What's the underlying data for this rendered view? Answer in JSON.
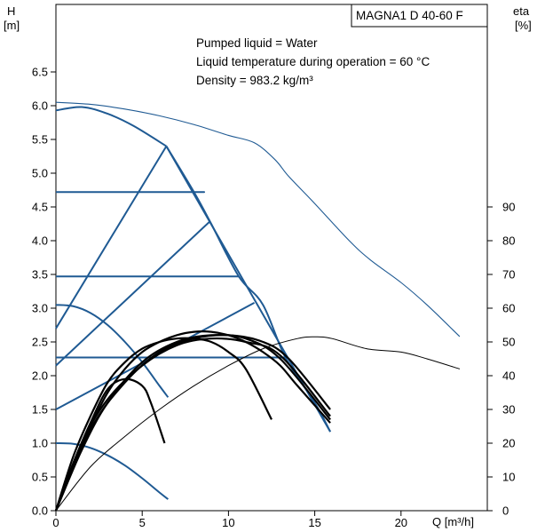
{
  "chart_data": {
    "type": "line",
    "title": "MAGNA1 D 40-60 F",
    "annotations": [
      "Pumped liquid = Water",
      "Liquid temperature during operation = 60 °C",
      "Density = 983.2 kg/m³"
    ],
    "x_axis": {
      "label": "Q [m³/h]",
      "range": [
        0,
        25
      ],
      "ticks": [
        0,
        5,
        10,
        15,
        20
      ],
      "tick_labels": [
        "0",
        "5",
        "10",
        "15",
        "20"
      ]
    },
    "y_axis_left": {
      "label_line1": "H",
      "label_line2": "[m]",
      "range": [
        0,
        7.5
      ],
      "ticks": [
        0,
        0.5,
        1,
        1.5,
        2,
        2.5,
        3,
        3.5,
        4,
        4.5,
        5,
        5.5,
        6,
        6.5
      ],
      "tick_labels": [
        "0.0",
        "0.5",
        "1.0",
        "1.5",
        "2.0",
        "2.5",
        "3.0",
        "3.5",
        "4.0",
        "4.5",
        "5.0",
        "5.5",
        "6.0",
        "6.5"
      ]
    },
    "y_axis_right": {
      "label_line1": "eta",
      "label_line2": "[%]",
      "range": [
        0,
        150
      ],
      "ticks": [
        0,
        10,
        20,
        30,
        40,
        50,
        60,
        70,
        80,
        90
      ],
      "tick_labels": [
        "0",
        "10",
        "20",
        "30",
        "40",
        "50",
        "60",
        "70",
        "80",
        "90"
      ]
    },
    "grid": false,
    "head_curves": [
      {
        "x": [
          0,
          1.5,
          3,
          4.5,
          6.4
        ],
        "y": [
          5.93,
          5.98,
          5.88,
          5.7,
          5.4
        ]
      },
      {
        "x": [
          0,
          1,
          2,
          3,
          4,
          5,
          6,
          6.5
        ],
        "y": [
          3.05,
          3.03,
          2.93,
          2.75,
          2.5,
          2.2,
          1.85,
          1.68
        ]
      },
      {
        "x": [
          0,
          1,
          2,
          3,
          4,
          5,
          6,
          6.5
        ],
        "y": [
          1.0,
          0.99,
          0.93,
          0.82,
          0.67,
          0.48,
          0.27,
          0.17
        ]
      },
      {
        "x": [
          0,
          8,
          8.0
        ],
        "y": [
          4.72,
          4.72,
          4.72
        ]
      },
      {
        "x": [
          0,
          10.6
        ],
        "y": [
          3.47,
          3.47
        ]
      },
      {
        "x": [
          0,
          13.3
        ],
        "y": [
          2.27,
          2.27
        ]
      }
    ],
    "max_curve": {
      "x": [
        6.4,
        8,
        9,
        10.6,
        12,
        13.3,
        15,
        15.9
      ],
      "y": [
        5.4,
        4.72,
        4.25,
        3.47,
        3.05,
        2.27,
        1.6,
        1.17
      ]
    },
    "control_lines": [
      {
        "x": [
          0,
          6.4
        ],
        "y": [
          2.7,
          5.4
        ]
      },
      {
        "x": [
          0,
          8.9
        ],
        "y": [
          2.15,
          4.28
        ]
      },
      {
        "x": [
          0,
          11.5
        ],
        "y": [
          1.5,
          3.08
        ]
      },
      {
        "x": [
          6.4,
          15.9
        ],
        "y": [
          5.4,
          1.17
        ]
      }
    ],
    "power_curves": [
      {
        "x": [
          0,
          2,
          4,
          6,
          8,
          10,
          11.5,
          12.7,
          13.5
        ],
        "y": [
          6.05,
          6.02,
          5.95,
          5.85,
          5.72,
          5.56,
          5.45,
          5.2,
          4.95
        ]
      },
      {
        "x": [
          13.5,
          15,
          17,
          18.2,
          20,
          21.5,
          23.4
        ],
        "y": [
          4.95,
          4.55,
          4.0,
          3.72,
          3.38,
          3.05,
          2.58
        ]
      }
    ],
    "eta_curves": [
      {
        "x": [
          0,
          1,
          2,
          3,
          4,
          5,
          5.5,
          6.3
        ],
        "y": [
          0,
          14,
          26,
          36,
          39,
          37,
          32,
          20
        ]
      },
      {
        "x": [
          0,
          1,
          2,
          3,
          4,
          5,
          6,
          7,
          8,
          9,
          10,
          11,
          12.5
        ],
        "y": [
          0,
          16,
          28,
          38,
          44,
          48,
          50,
          51,
          51,
          50,
          47,
          42,
          27
        ]
      },
      {
        "x": [
          0,
          1,
          2,
          3,
          4,
          5,
          6,
          7,
          8,
          9,
          10,
          11,
          12,
          13,
          14,
          15.9
        ],
        "y": [
          0,
          14,
          25,
          35,
          42,
          47,
          50,
          52,
          53,
          53,
          52,
          50,
          47,
          43,
          37,
          26
        ]
      },
      {
        "x": [
          0,
          1.5,
          3,
          5,
          7,
          9,
          11,
          13,
          15.9
        ],
        "y": [
          0,
          20,
          33,
          43,
          49,
          51,
          50,
          46,
          28
        ]
      },
      {
        "x": [
          0,
          1.5,
          3,
          5,
          7,
          9,
          11,
          13,
          15.9
        ],
        "y": [
          0,
          18,
          32,
          44,
          50,
          52,
          51,
          45,
          27
        ]
      },
      {
        "x": [
          0,
          2,
          4,
          6,
          8,
          10,
          12,
          13.5,
          15.9
        ],
        "y": [
          0,
          24,
          38,
          47,
          51,
          52,
          50,
          45,
          30
        ]
      }
    ],
    "eta_thin_curve": {
      "x": [
        0,
        2,
        4,
        6,
        8,
        10,
        12,
        14,
        15,
        16,
        18,
        20,
        21.5,
        23.4
      ],
      "y": [
        0,
        13,
        22,
        30,
        37,
        43,
        48,
        51,
        51.5,
        51,
        48,
        47,
        45,
        42
      ]
    }
  }
}
